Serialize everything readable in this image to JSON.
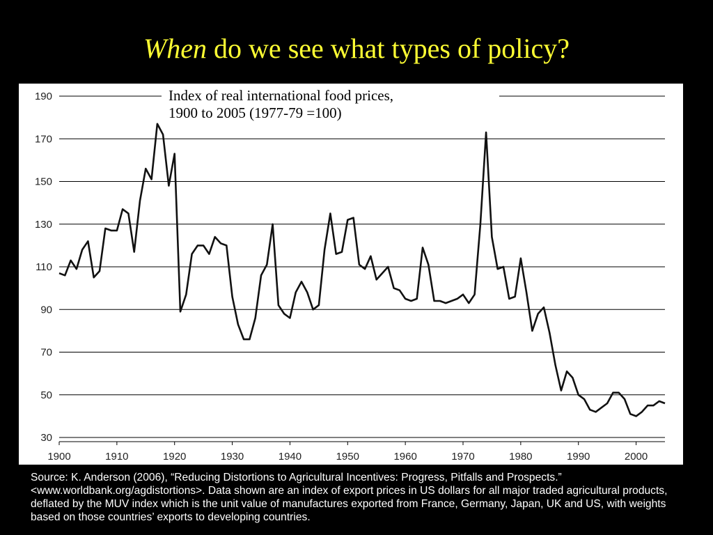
{
  "slide": {
    "title_emphasis": "When",
    "title_rest": " do we see what types of policy?",
    "source_note": "Source:  K. Anderson (2006), “Reducing Distortions to Agricultural Incentives: Progress, Pitfalls and Prospects.” <www.worldbank.org/agdistortions>.  Data shown are an index of export prices in US dollars for all major traded agricultural products, deflated by the MUV index which is the unit value of manufactures exported from France, Germany, Japan, UK and US, with weights based on those countries’ exports to developing countries."
  },
  "colors": {
    "background": "#000000",
    "title": "#ffff33",
    "chart_background": "#ffffff",
    "series_line": "#111111",
    "gridline": "#000000"
  },
  "chart_data": {
    "type": "line",
    "caption_lines": [
      "Index of real international food prices,",
      "1900 to 2005 (1977-79 =100)"
    ],
    "xlabel": "",
    "ylabel": "",
    "xlim": [
      1900,
      2005
    ],
    "ylim": [
      30,
      190
    ],
    "x_ticks": [
      1900,
      1910,
      1920,
      1930,
      1940,
      1950,
      1960,
      1970,
      1980,
      1990,
      2000
    ],
    "y_ticks": [
      30,
      50,
      70,
      90,
      110,
      130,
      150,
      170,
      190
    ],
    "grid": "horizontal",
    "series": [
      {
        "x": [
          1900,
          1901,
          1902,
          1903,
          1904,
          1905,
          1906,
          1907,
          1908,
          1909,
          1910,
          1911,
          1912,
          1913,
          1914,
          1915,
          1916,
          1917,
          1918,
          1919,
          1920,
          1921,
          1922,
          1923,
          1924,
          1925,
          1926,
          1927,
          1928,
          1929,
          1930,
          1931,
          1932,
          1933,
          1934,
          1935,
          1936,
          1937,
          1938,
          1939,
          1940,
          1941,
          1942,
          1943,
          1944,
          1945,
          1946,
          1947,
          1948,
          1949,
          1950,
          1951,
          1952,
          1953,
          1954,
          1955,
          1956,
          1957,
          1958,
          1959,
          1960,
          1961,
          1962,
          1963,
          1964,
          1965,
          1966,
          1967,
          1968,
          1969,
          1970,
          1971,
          1972,
          1973,
          1974,
          1975,
          1976,
          1977,
          1978,
          1979,
          1980,
          1981,
          1982,
          1983,
          1984,
          1985,
          1986,
          1987,
          1988,
          1989,
          1990,
          1991,
          1992,
          1993,
          1994,
          1995,
          1996,
          1997,
          1998,
          1999,
          2000,
          2001,
          2002,
          2003,
          2004,
          2005
        ],
        "values": [
          107,
          106,
          113,
          109,
          118,
          122,
          105,
          108,
          128,
          127,
          127,
          137,
          135,
          117,
          141,
          156,
          151,
          177,
          172,
          148,
          163,
          89,
          97,
          116,
          120,
          120,
          116,
          124,
          121,
          120,
          96,
          83,
          76,
          76,
          86,
          106,
          111,
          130,
          92,
          88,
          86,
          98,
          103,
          98,
          90,
          92,
          118,
          135,
          116,
          117,
          132,
          133,
          111,
          109,
          115,
          104,
          107,
          110,
          100,
          99,
          95,
          94,
          95,
          119,
          111,
          94,
          94,
          93,
          94,
          95,
          97,
          93,
          97,
          130,
          173,
          124,
          109,
          110,
          95,
          96,
          114,
          98,
          80,
          88,
          91,
          79,
          64,
          52,
          61,
          58,
          50,
          48,
          43,
          42,
          44,
          46,
          51,
          51,
          48,
          41,
          40,
          42,
          45,
          45,
          47,
          46
        ]
      }
    ]
  }
}
